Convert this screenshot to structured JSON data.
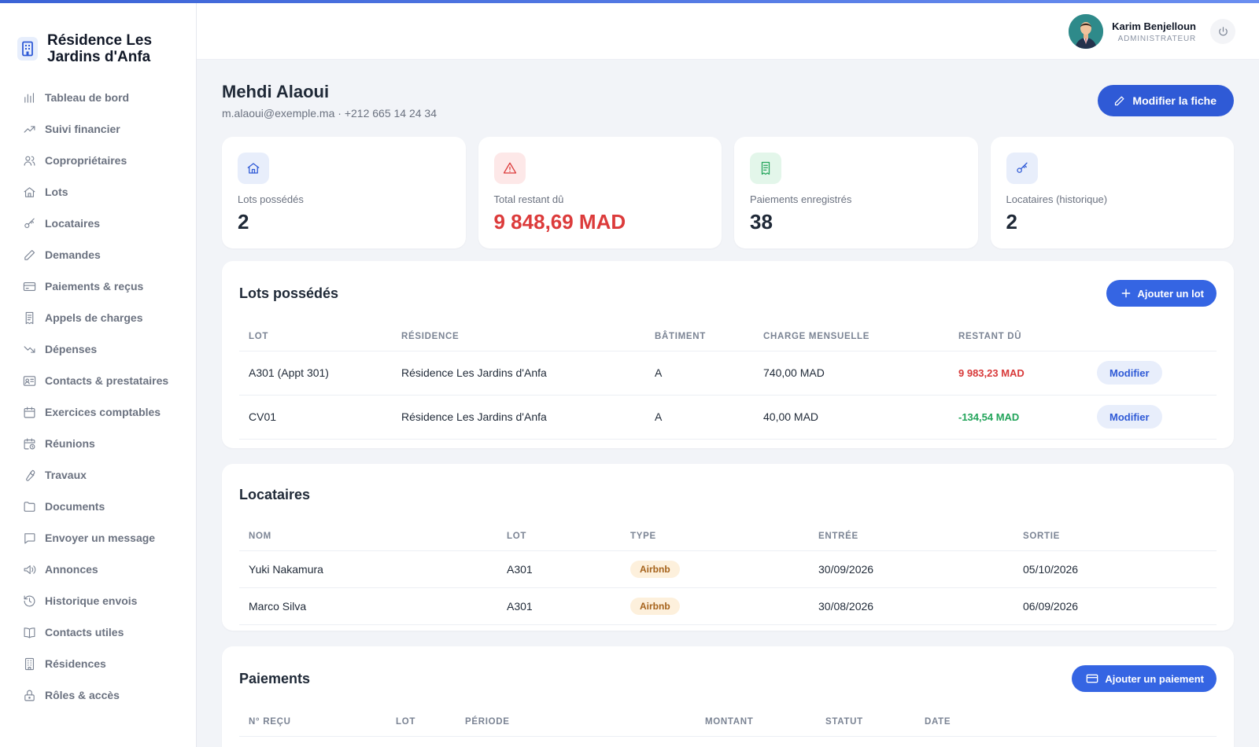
{
  "brand": {
    "title_line1": "Résidence Les",
    "title_line2": "Jardins d'Anfa"
  },
  "sidebar": {
    "items": [
      {
        "label": "Tableau de bord",
        "icon": "bar-chart-icon"
      },
      {
        "label": "Suivi financier",
        "icon": "trending-up-icon"
      },
      {
        "label": "Copropriétaires",
        "icon": "users-icon"
      },
      {
        "label": "Lots",
        "icon": "home-icon"
      },
      {
        "label": "Locataires",
        "icon": "key-icon"
      },
      {
        "label": "Demandes",
        "icon": "pencil-icon"
      },
      {
        "label": "Paiements & reçus",
        "icon": "credit-card-icon"
      },
      {
        "label": "Appels de charges",
        "icon": "receipt-icon"
      },
      {
        "label": "Dépenses",
        "icon": "trending-down-icon"
      },
      {
        "label": "Contacts & prestataires",
        "icon": "id-card-icon"
      },
      {
        "label": "Exercices comptables",
        "icon": "calendar-icon"
      },
      {
        "label": "Réunions",
        "icon": "calendar-clock-icon"
      },
      {
        "label": "Travaux",
        "icon": "wrench-icon"
      },
      {
        "label": "Documents",
        "icon": "folder-icon"
      },
      {
        "label": "Envoyer un message",
        "icon": "message-icon"
      },
      {
        "label": "Annonces",
        "icon": "megaphone-icon"
      },
      {
        "label": "Historique envois",
        "icon": "history-icon"
      },
      {
        "label": "Contacts utiles",
        "icon": "book-icon"
      },
      {
        "label": "Résidences",
        "icon": "building-icon"
      },
      {
        "label": "Rôles & accès",
        "icon": "lock-icon"
      }
    ]
  },
  "header": {
    "user_name": "Karim Benjelloun",
    "user_role": "ADMINISTRATEUR"
  },
  "page": {
    "title": "Mehdi Alaoui",
    "subtitle": "m.alaoui@exemple.ma · +212 665 14 24 34",
    "edit_button": "Modifier la fiche"
  },
  "stats": [
    {
      "label": "Lots possédés",
      "value": "2",
      "icon": "home-icon",
      "bg": "#e8eefb",
      "color": "#2f5ad6"
    },
    {
      "label": "Total restant dû",
      "value": "9 848,69 MAD",
      "icon": "alert-triangle-icon",
      "bg": "#fde8e8",
      "color": "#dc3b3b"
    },
    {
      "label": "Paiements enregistrés",
      "value": "38",
      "icon": "receipt-icon",
      "bg": "#e3f6ea",
      "color": "#22a45a"
    },
    {
      "label": "Locataires (historique)",
      "value": "2",
      "icon": "key-icon",
      "bg": "#e8eefb",
      "color": "#2f5ad6"
    }
  ],
  "lots": {
    "title": "Lots possédés",
    "add_button": "Ajouter un lot",
    "headers": [
      "LOT",
      "RÉSIDENCE",
      "BÂTIMENT",
      "CHARGE MENSUELLE",
      "RESTANT DÛ"
    ],
    "rows": [
      {
        "lot": "A301 (Appt 301)",
        "residence": "Résidence Les Jardins d'Anfa",
        "batiment": "A",
        "charge": "740,00 MAD",
        "restant": "9 983,23 MAD",
        "action": "Modifier"
      },
      {
        "lot": "CV01",
        "residence": "Résidence Les Jardins d'Anfa",
        "batiment": "A",
        "charge": "40,00 MAD",
        "restant": "-134,54 MAD",
        "action": "Modifier"
      }
    ]
  },
  "locataires": {
    "title": "Locataires",
    "headers": [
      "NOM",
      "LOT",
      "TYPE",
      "ENTRÉE",
      "SORTIE"
    ],
    "rows": [
      {
        "nom": "Yuki Nakamura",
        "lot": "A301",
        "type": "Airbnb",
        "entree": "30/09/2026",
        "sortie": "05/10/2026"
      },
      {
        "nom": "Marco Silva",
        "lot": "A301",
        "type": "Airbnb",
        "entree": "30/08/2026",
        "sortie": "06/09/2026"
      }
    ]
  },
  "paiements": {
    "title": "Paiements",
    "add_button": "Ajouter un paiement",
    "headers": [
      "N° REÇU",
      "LOT",
      "PÉRIODE",
      "MONTANT",
      "STATUT",
      "DATE"
    ]
  }
}
